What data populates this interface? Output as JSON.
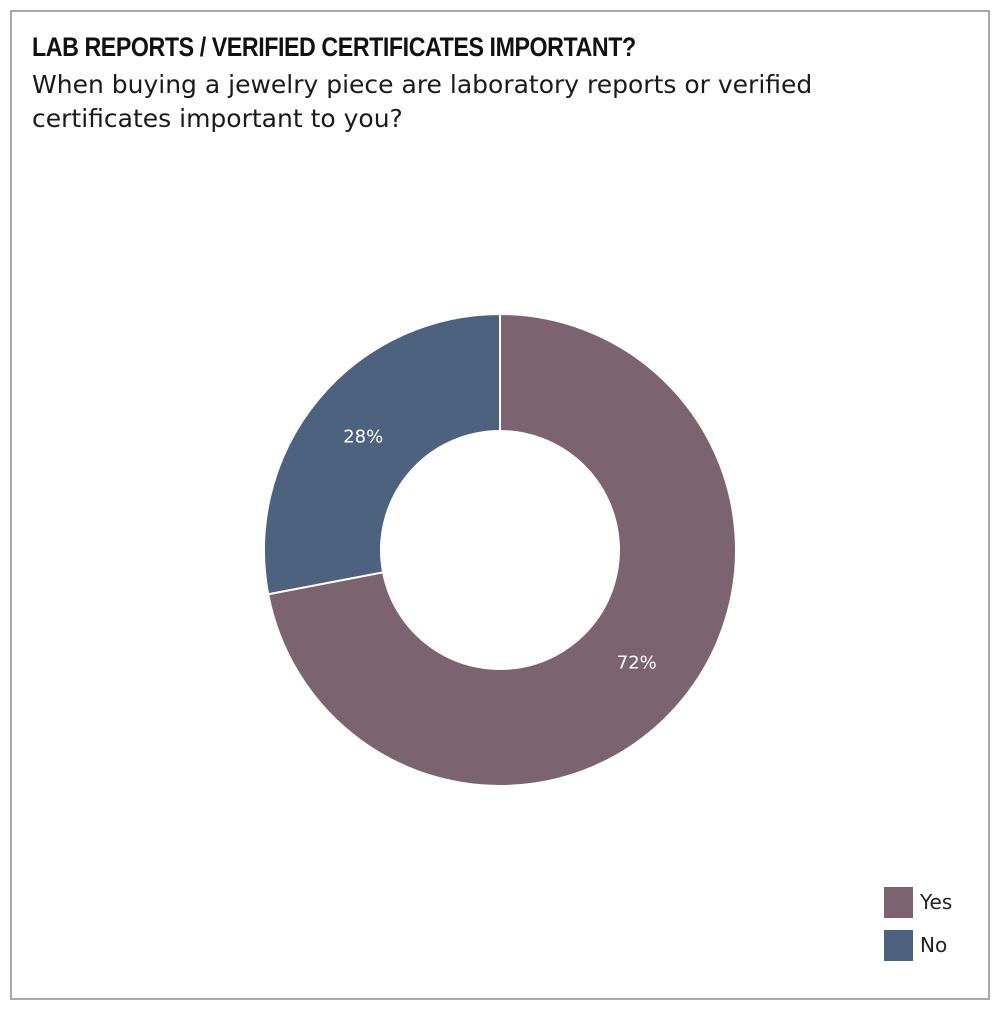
{
  "title": "LAB REPORTS / VERIFIED CERTIFICATES IMPORTANT?",
  "subtitle": "When buying a jewelry piece are laboratory reports or verified certificates important to you?",
  "chart_data": {
    "type": "pie",
    "variant": "donut",
    "categories": [
      "Yes",
      "No"
    ],
    "values": [
      72,
      28
    ],
    "labels": [
      "72%",
      "28%"
    ],
    "colors": [
      "#7c6370",
      "#4d627f"
    ],
    "legend": {
      "placement": "bottom-right",
      "items": [
        {
          "label": "Yes",
          "color": "#7c6370"
        },
        {
          "label": "No",
          "color": "#4d627f"
        }
      ]
    }
  }
}
